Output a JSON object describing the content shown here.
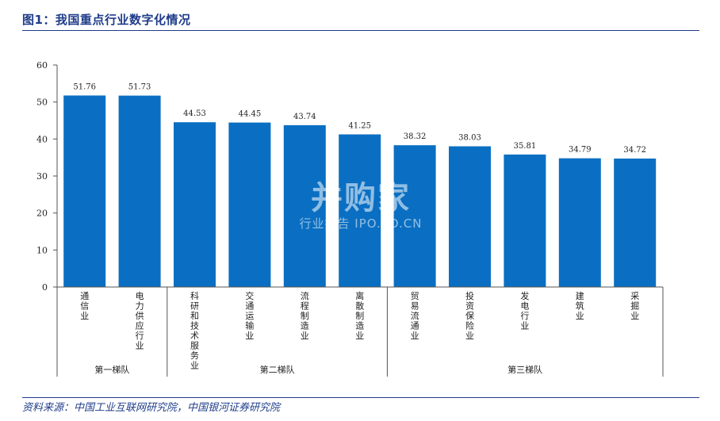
{
  "header": {
    "title": "图1：我国重点行业数字化情况"
  },
  "footer": {
    "source": "资料来源：中国工业互联网研究院，中国银河证券研究院"
  },
  "watermark": {
    "main": "并购家",
    "sub": "行业报告 IPO.PO.CN"
  },
  "chart_data": {
    "type": "bar",
    "categories": [
      "通信业",
      "电力供应行业",
      "科研和技术服务业",
      "交通运输业",
      "流程制造业",
      "离散制造业",
      "贸易流通业",
      "投资保险业",
      "发电行业",
      "建筑业",
      "采掘业"
    ],
    "values": [
      51.76,
      51.73,
      44.53,
      44.45,
      43.74,
      41.25,
      38.32,
      38.03,
      35.81,
      34.79,
      34.72
    ],
    "value_labels": [
      "51.76",
      "51.73",
      "44.53",
      "44.45",
      "43.74",
      "41.25",
      "38.32",
      "38.03",
      "35.81",
      "34.79",
      "34.72"
    ],
    "ylim": [
      0,
      60
    ],
    "yticks": [
      "0",
      "10",
      "20",
      "30",
      "40",
      "50",
      "60"
    ],
    "groups": [
      {
        "label": "第一梯队",
        "count": 2
      },
      {
        "label": "第二梯队",
        "count": 4
      },
      {
        "label": "第三梯队",
        "count": 5
      }
    ],
    "bar_color": "#0a6fc2",
    "grid": false,
    "legend": "none"
  }
}
